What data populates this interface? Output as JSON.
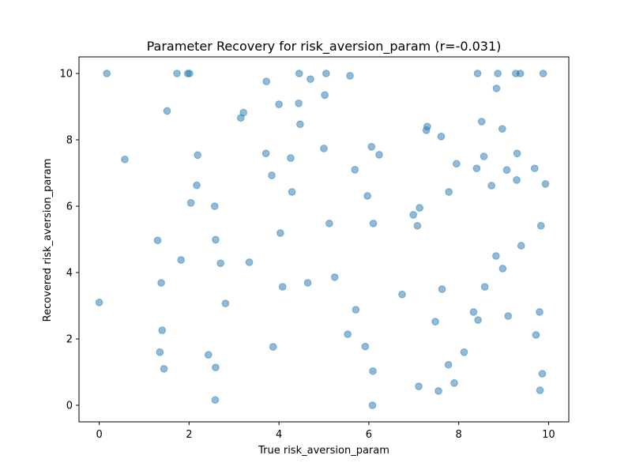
{
  "chart_data": {
    "type": "scatter",
    "title": "Parameter Recovery for risk_aversion_param (r=-0.031)",
    "xlabel": "True risk_aversion_param",
    "ylabel": "Recovered risk_aversion_param",
    "xlim": [
      -0.45,
      10.45
    ],
    "ylim": [
      -0.5,
      10.5
    ],
    "xticks": [
      0,
      2,
      4,
      6,
      8,
      10
    ],
    "yticks": [
      0,
      2,
      4,
      6,
      8,
      10
    ],
    "grid": false,
    "point_color": "#1f77b4",
    "point_alpha": 0.5,
    "points": [
      {
        "x": 0.0,
        "y": 3.1
      },
      {
        "x": 0.17,
        "y": 10.0
      },
      {
        "x": 0.57,
        "y": 7.41
      },
      {
        "x": 1.3,
        "y": 4.97
      },
      {
        "x": 1.35,
        "y": 1.6
      },
      {
        "x": 1.38,
        "y": 3.69
      },
      {
        "x": 1.4,
        "y": 2.26
      },
      {
        "x": 1.44,
        "y": 1.1
      },
      {
        "x": 1.51,
        "y": 8.87
      },
      {
        "x": 1.73,
        "y": 10.0
      },
      {
        "x": 1.82,
        "y": 4.38
      },
      {
        "x": 1.97,
        "y": 10.0
      },
      {
        "x": 2.01,
        "y": 10.0
      },
      {
        "x": 2.04,
        "y": 6.1
      },
      {
        "x": 2.17,
        "y": 6.63
      },
      {
        "x": 2.19,
        "y": 7.54
      },
      {
        "x": 2.43,
        "y": 1.52
      },
      {
        "x": 2.57,
        "y": 6.0
      },
      {
        "x": 2.58,
        "y": 0.16
      },
      {
        "x": 2.59,
        "y": 1.14
      },
      {
        "x": 2.59,
        "y": 4.99
      },
      {
        "x": 2.7,
        "y": 4.28
      },
      {
        "x": 2.81,
        "y": 3.07
      },
      {
        "x": 3.15,
        "y": 8.66
      },
      {
        "x": 3.21,
        "y": 8.82
      },
      {
        "x": 3.34,
        "y": 4.31
      },
      {
        "x": 3.71,
        "y": 7.59
      },
      {
        "x": 3.72,
        "y": 9.76
      },
      {
        "x": 3.84,
        "y": 6.93
      },
      {
        "x": 3.87,
        "y": 1.76
      },
      {
        "x": 4.0,
        "y": 9.07
      },
      {
        "x": 4.03,
        "y": 5.19
      },
      {
        "x": 4.08,
        "y": 3.57
      },
      {
        "x": 4.26,
        "y": 7.45
      },
      {
        "x": 4.29,
        "y": 6.43
      },
      {
        "x": 4.44,
        "y": 9.1
      },
      {
        "x": 4.45,
        "y": 10.0
      },
      {
        "x": 4.47,
        "y": 8.47
      },
      {
        "x": 4.64,
        "y": 3.69
      },
      {
        "x": 4.7,
        "y": 9.83
      },
      {
        "x": 5.0,
        "y": 7.74
      },
      {
        "x": 5.02,
        "y": 9.35
      },
      {
        "x": 5.05,
        "y": 10.0
      },
      {
        "x": 5.12,
        "y": 5.48
      },
      {
        "x": 5.24,
        "y": 3.86
      },
      {
        "x": 5.53,
        "y": 2.14
      },
      {
        "x": 5.58,
        "y": 9.93
      },
      {
        "x": 5.69,
        "y": 7.1
      },
      {
        "x": 5.71,
        "y": 2.88
      },
      {
        "x": 5.92,
        "y": 1.77
      },
      {
        "x": 5.97,
        "y": 6.31
      },
      {
        "x": 6.06,
        "y": 7.79
      },
      {
        "x": 6.08,
        "y": 0.0
      },
      {
        "x": 6.09,
        "y": 1.03
      },
      {
        "x": 6.1,
        "y": 5.48
      },
      {
        "x": 6.23,
        "y": 7.55
      },
      {
        "x": 6.74,
        "y": 3.34
      },
      {
        "x": 6.99,
        "y": 5.74
      },
      {
        "x": 7.08,
        "y": 5.41
      },
      {
        "x": 7.11,
        "y": 0.57
      },
      {
        "x": 7.13,
        "y": 5.95
      },
      {
        "x": 7.28,
        "y": 8.29
      },
      {
        "x": 7.3,
        "y": 8.4
      },
      {
        "x": 7.48,
        "y": 2.52
      },
      {
        "x": 7.55,
        "y": 0.43
      },
      {
        "x": 7.61,
        "y": 8.1
      },
      {
        "x": 7.63,
        "y": 3.5
      },
      {
        "x": 7.77,
        "y": 1.22
      },
      {
        "x": 7.78,
        "y": 6.43
      },
      {
        "x": 7.9,
        "y": 0.67
      },
      {
        "x": 7.95,
        "y": 7.28
      },
      {
        "x": 8.12,
        "y": 1.6
      },
      {
        "x": 8.33,
        "y": 2.81
      },
      {
        "x": 8.4,
        "y": 7.14
      },
      {
        "x": 8.42,
        "y": 10.0
      },
      {
        "x": 8.43,
        "y": 2.57
      },
      {
        "x": 8.51,
        "y": 8.55
      },
      {
        "x": 8.56,
        "y": 7.5
      },
      {
        "x": 8.58,
        "y": 3.57
      },
      {
        "x": 8.73,
        "y": 6.62
      },
      {
        "x": 8.83,
        "y": 4.5
      },
      {
        "x": 8.84,
        "y": 9.55
      },
      {
        "x": 8.87,
        "y": 10.0
      },
      {
        "x": 8.97,
        "y": 8.33
      },
      {
        "x": 8.98,
        "y": 4.12
      },
      {
        "x": 9.07,
        "y": 7.09
      },
      {
        "x": 9.1,
        "y": 2.69
      },
      {
        "x": 9.27,
        "y": 10.0
      },
      {
        "x": 9.29,
        "y": 6.79
      },
      {
        "x": 9.3,
        "y": 7.59
      },
      {
        "x": 9.37,
        "y": 10.0
      },
      {
        "x": 9.39,
        "y": 4.81
      },
      {
        "x": 9.69,
        "y": 7.14
      },
      {
        "x": 9.72,
        "y": 2.12
      },
      {
        "x": 9.8,
        "y": 2.81
      },
      {
        "x": 9.81,
        "y": 0.45
      },
      {
        "x": 9.83,
        "y": 5.41
      },
      {
        "x": 9.86,
        "y": 0.95
      },
      {
        "x": 9.88,
        "y": 10.0
      },
      {
        "x": 9.93,
        "y": 6.67
      }
    ]
  }
}
